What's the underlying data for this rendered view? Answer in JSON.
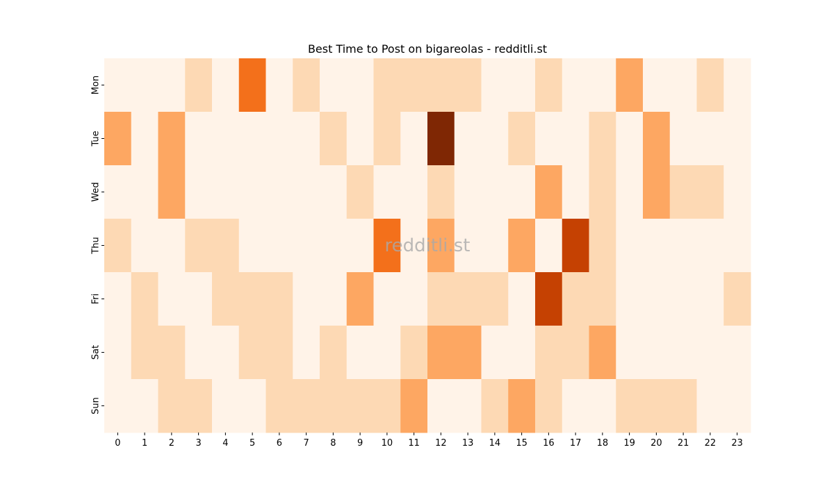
{
  "chart_data": {
    "type": "heatmap",
    "title": "Best Time to Post on bigareolas - redditli.st",
    "watermark": "redditli.st",
    "x_labels": [
      "0",
      "1",
      "2",
      "3",
      "4",
      "5",
      "6",
      "7",
      "8",
      "9",
      "10",
      "11",
      "12",
      "13",
      "14",
      "15",
      "16",
      "17",
      "18",
      "19",
      "20",
      "21",
      "22",
      "23"
    ],
    "y_labels": [
      "Mon",
      "Tue",
      "Wed",
      "Thu",
      "Fri",
      "Sat",
      "Sun"
    ],
    "xlabel": "",
    "ylabel": "",
    "colormap": "Oranges",
    "colorbar": false,
    "value_range": [
      0,
      5
    ],
    "values": [
      [
        0,
        0,
        0,
        1,
        0,
        3,
        0,
        1,
        0,
        0,
        1,
        1,
        1,
        1,
        0,
        0,
        1,
        0,
        0,
        2,
        0,
        0,
        1,
        0
      ],
      [
        2,
        0,
        2,
        0,
        0,
        0,
        0,
        0,
        1,
        0,
        1,
        0,
        5,
        0,
        0,
        1,
        0,
        0,
        1,
        0,
        2,
        0,
        0,
        0
      ],
      [
        0,
        0,
        2,
        0,
        0,
        0,
        0,
        0,
        0,
        1,
        0,
        0,
        1,
        0,
        0,
        0,
        2,
        0,
        1,
        0,
        2,
        1,
        1,
        0
      ],
      [
        1,
        0,
        0,
        1,
        1,
        0,
        0,
        0,
        0,
        0,
        3,
        0,
        2,
        0,
        0,
        2,
        0,
        4,
        1,
        0,
        0,
        0,
        0,
        0
      ],
      [
        0,
        1,
        0,
        0,
        1,
        1,
        1,
        0,
        0,
        2,
        0,
        0,
        1,
        1,
        1,
        0,
        4,
        1,
        1,
        0,
        0,
        0,
        0,
        1
      ],
      [
        0,
        1,
        1,
        0,
        0,
        1,
        1,
        0,
        1,
        0,
        0,
        1,
        2,
        2,
        0,
        0,
        1,
        1,
        2,
        0,
        0,
        0,
        0,
        0
      ],
      [
        0,
        0,
        1,
        1,
        0,
        0,
        1,
        1,
        1,
        1,
        1,
        2,
        0,
        0,
        1,
        2,
        1,
        0,
        0,
        1,
        1,
        1,
        0,
        0
      ]
    ],
    "level_colors": [
      "#fff3e8",
      "#fdd9b4",
      "#fda762",
      "#f3701b",
      "#c54102",
      "#7f2704"
    ]
  }
}
